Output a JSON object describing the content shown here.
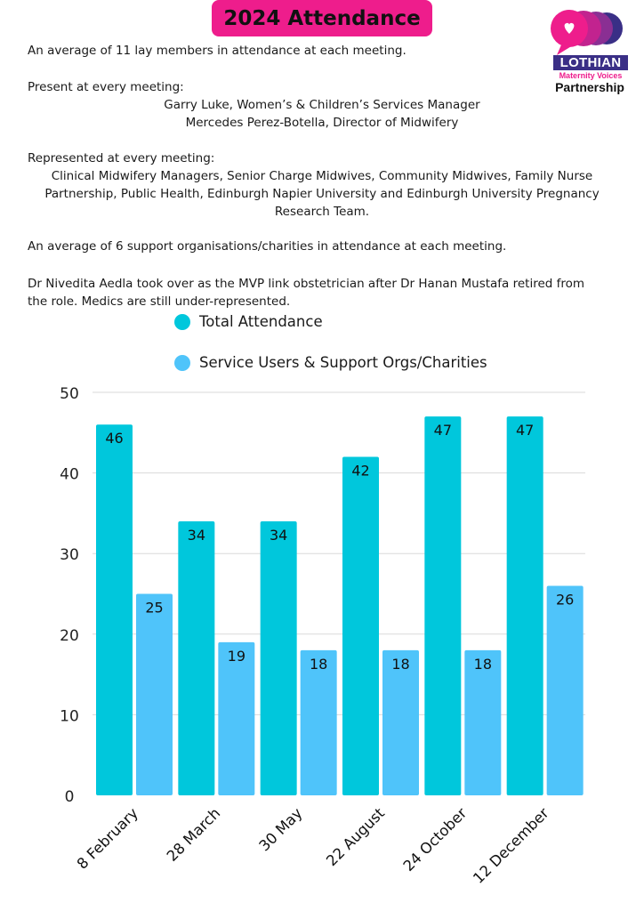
{
  "header": {
    "title": "2024 Attendance",
    "logo": {
      "word": "LOTHIAN",
      "sub": "Maternity Voices",
      "part": "Partnership",
      "colors": [
        "#ee1d8c",
        "#c2238f",
        "#8a2f93",
        "#3a2f86"
      ]
    }
  },
  "summary": {
    "line1": "An average of 11 lay members in attendance at each meeting.",
    "present_heading": "Present at every meeting:",
    "present_1": "Garry Luke,  Women’s & Children’s Services Manager",
    "present_2": "Mercedes Perez-Botella, Director of Midwifery",
    "represented_heading": "Represented at every meeting:",
    "represented_1": "Clinical Midwifery Managers, Senior Charge Midwives, Community Midwives, Family Nurse",
    "represented_2": "Partnership, Public Health, Edinburgh Napier University and Edinburgh University Pregnancy",
    "represented_3": "Research Team.",
    "support_line": "An average of 6 support organisations/charities in attendance at each meeting.",
    "obstetrician_1": "Dr Nivedita Aedla took over as the MVP link obstetrician after Dr Hanan Mustafa retired from",
    "obstetrician_2": "the role. Medics are still under-represented."
  },
  "chart_data": {
    "type": "bar",
    "categories": [
      "8 February",
      "28 March",
      "30 May",
      "22 August",
      "24 October",
      "12 December"
    ],
    "series": [
      {
        "name": "Total Attendance",
        "values": [
          46,
          34,
          34,
          42,
          47,
          47
        ],
        "color": "#00c7dc"
      },
      {
        "name": "Service Users & Support Orgs/Charities",
        "values": [
          25,
          19,
          18,
          18,
          18,
          26
        ],
        "color": "#4fc4fa"
      }
    ],
    "ylim": [
      0,
      50
    ],
    "yticks": [
      "0",
      "10",
      "20",
      "30",
      "40",
      "50"
    ],
    "grid": true,
    "legend": "top",
    "data_labels": true
  }
}
